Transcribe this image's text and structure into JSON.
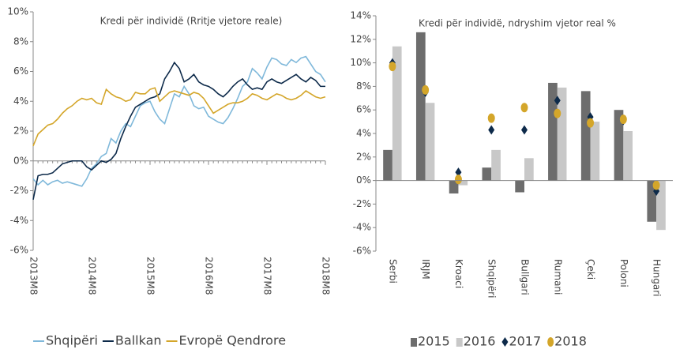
{
  "chart_data": [
    {
      "type": "line",
      "title": "Kredi për individë (Rritje vjetore reale)",
      "categories": [
        "2013M8",
        null,
        null,
        null,
        null,
        null,
        null,
        null,
        null,
        null,
        null,
        null,
        "2014M8",
        null,
        null,
        null,
        null,
        null,
        null,
        null,
        null,
        null,
        null,
        null,
        "2015M8",
        null,
        null,
        null,
        null,
        null,
        null,
        null,
        null,
        null,
        null,
        null,
        "2016M8",
        null,
        null,
        null,
        null,
        null,
        null,
        null,
        null,
        null,
        null,
        null,
        "2017M8",
        null,
        null,
        null,
        null,
        null,
        null,
        null,
        null,
        null,
        null,
        null,
        "2018M8"
      ],
      "series": [
        {
          "name": "Shqipëri",
          "color": "#7fb8da",
          "values": [
            -1.2,
            -1.6,
            -1.3,
            -1.6,
            -1.4,
            -1.3,
            -1.5,
            -1.4,
            -1.5,
            -1.6,
            -1.7,
            -1.2,
            -0.5,
            -0.2,
            0.3,
            0.5,
            1.5,
            1.2,
            2.0,
            2.5,
            2.3,
            3.0,
            3.7,
            3.9,
            4.0,
            3.3,
            2.8,
            2.5,
            3.5,
            4.5,
            4.3,
            5.0,
            4.5,
            3.7,
            3.5,
            3.6,
            3.0,
            2.8,
            2.6,
            2.5,
            2.9,
            3.5,
            4.2,
            5.0,
            5.3,
            6.2,
            5.9,
            5.5,
            6.3,
            6.9,
            6.8,
            6.5,
            6.4,
            6.8,
            6.6,
            6.9,
            7.0,
            6.5,
            6.0,
            5.8,
            5.3
          ]
        },
        {
          "name": "Ballkan",
          "color": "#0d2a4a",
          "values": [
            -2.6,
            -1.0,
            -0.9,
            -0.9,
            -0.8,
            -0.5,
            -0.2,
            -0.1,
            0,
            0,
            0,
            -0.4,
            -0.6,
            -0.3,
            0,
            -0.1,
            0.1,
            0.5,
            1.5,
            2.3,
            3.0,
            3.6,
            3.8,
            4.0,
            4.2,
            4.3,
            4.5,
            5.5,
            6.0,
            6.6,
            6.2,
            5.3,
            5.5,
            5.8,
            5.3,
            5.1,
            5.0,
            4.8,
            4.5,
            4.3,
            4.6,
            5.0,
            5.3,
            5.5,
            5.1,
            4.8,
            4.9,
            4.8,
            5.3,
            5.5,
            5.3,
            5.2,
            5.4,
            5.6,
            5.8,
            5.5,
            5.3,
            5.6,
            5.4,
            5.0,
            5.0
          ]
        },
        {
          "name": "Evropë Qendrore",
          "color": "#d4a62a",
          "values": [
            1.0,
            1.8,
            2.1,
            2.4,
            2.5,
            2.8,
            3.2,
            3.5,
            3.7,
            4.0,
            4.2,
            4.1,
            4.2,
            3.9,
            3.8,
            4.8,
            4.5,
            4.3,
            4.2,
            4.0,
            4.1,
            4.6,
            4.5,
            4.5,
            4.8,
            4.9,
            4.0,
            4.3,
            4.6,
            4.7,
            4.6,
            4.5,
            4.4,
            4.6,
            4.5,
            4.2,
            3.7,
            3.2,
            3.4,
            3.6,
            3.8,
            3.9,
            3.9,
            4.0,
            4.2,
            4.5,
            4.4,
            4.2,
            4.1,
            4.3,
            4.5,
            4.4,
            4.2,
            4.1,
            4.2,
            4.4,
            4.7,
            4.5,
            4.3,
            4.2,
            4.3
          ]
        }
      ],
      "ylim": [
        -6,
        10
      ],
      "yticks": [
        {
          "value": -6,
          "label": "-6%"
        },
        {
          "value": -4,
          "label": "-4%"
        },
        {
          "value": -2,
          "label": "-2%"
        },
        {
          "value": 0,
          "label": "0%"
        },
        {
          "value": 2,
          "label": "2%"
        },
        {
          "value": 4,
          "label": "4%"
        },
        {
          "value": 6,
          "label": "6%"
        },
        {
          "value": 8,
          "label": "8%"
        },
        {
          "value": 10,
          "label": "10%"
        }
      ]
    },
    {
      "type": "bar",
      "title": "Kredi për individë, ndryshim vjetor real %",
      "categories": [
        "Serbi",
        "IRJM",
        "Kroaci",
        "Shqipëri",
        "Bullgari",
        "Rumani",
        "Çeki",
        "Poloni",
        "Hungari"
      ],
      "series": [
        {
          "name": "2015",
          "color": "#6d6d6d",
          "marker": "bar",
          "values": [
            2.6,
            12.6,
            -1.1,
            1.1,
            -1.0,
            8.3,
            7.6,
            6.0,
            -3.5
          ]
        },
        {
          "name": "2016",
          "color": "#c8c8c8",
          "marker": "bar",
          "values": [
            11.4,
            6.6,
            -0.4,
            2.6,
            1.9,
            7.9,
            5.0,
            4.2,
            -4.2
          ]
        },
        {
          "name": "2017",
          "color": "#0d2a4a",
          "marker": "diamond",
          "values": [
            10.0,
            7.5,
            0.7,
            4.3,
            4.3,
            6.8,
            5.4,
            5.1,
            -0.9
          ]
        },
        {
          "name": "2018",
          "color": "#d4a62a",
          "marker": "circle",
          "values": [
            9.7,
            7.7,
            0.1,
            5.3,
            6.2,
            5.7,
            4.9,
            5.2,
            -0.4
          ]
        }
      ],
      "ylim": [
        -6,
        14
      ],
      "yticks": [
        {
          "value": -6,
          "label": "-6%"
        },
        {
          "value": -4,
          "label": "-4%"
        },
        {
          "value": -2,
          "label": "-2%"
        },
        {
          "value": 0,
          "label": "0%"
        },
        {
          "value": 2,
          "label": "2%"
        },
        {
          "value": 4,
          "label": "4%"
        },
        {
          "value": 6,
          "label": "6%"
        },
        {
          "value": 8,
          "label": "8%"
        },
        {
          "value": 10,
          "label": "10%"
        },
        {
          "value": 12,
          "label": "12%"
        },
        {
          "value": 14,
          "label": "14%"
        }
      ]
    }
  ]
}
